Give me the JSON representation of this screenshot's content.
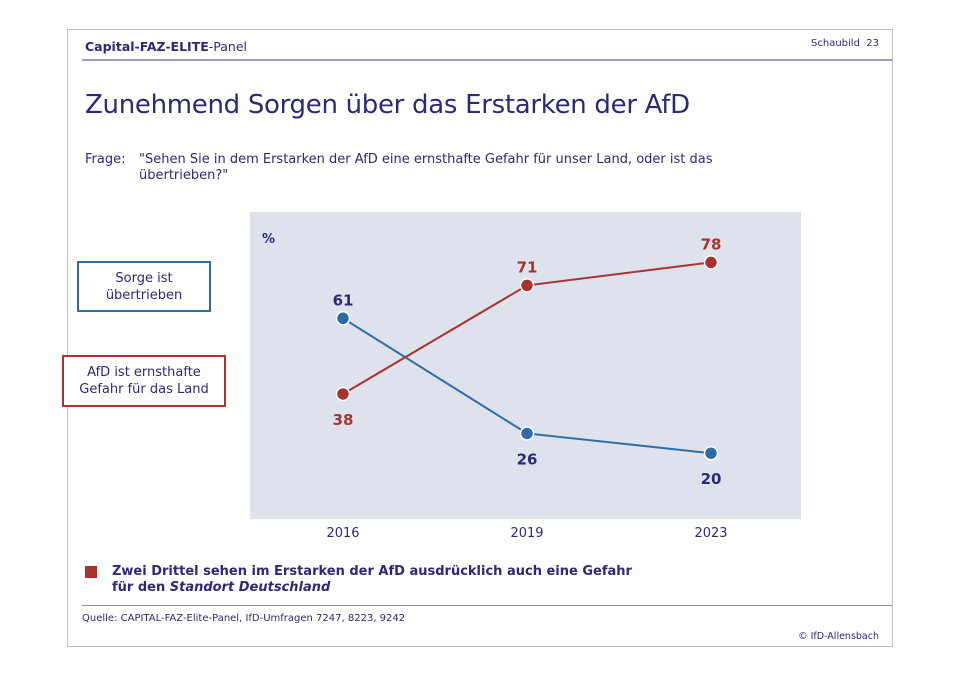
{
  "header": {
    "panel_name_bold": "Capital-FAZ-ELITE",
    "panel_name_rest": "-Panel",
    "schaubild": "Schaubild  23"
  },
  "title": "Zunehmend Sorgen über das Erstarken der AfD",
  "question": {
    "label": "Frage:",
    "line1": "\"Sehen Sie in dem Erstarken der AfD eine ernsthafte Gefahr für unser Land, oder ist das",
    "line2": "übertrieben?\""
  },
  "legend": {
    "blue_line1": "Sorge ist",
    "blue_line2": "übertrieben",
    "red_line1": "AfD ist ernsthafte",
    "red_line2": "Gefahr für das Land"
  },
  "takeaway": {
    "line1": "Zwei Drittel sehen im Erstarken der AfD ausdrücklich auch eine Gefahr",
    "line2_prefix": "für den ",
    "line2_italic": "Standort Deutschland"
  },
  "source": "Quelle: CAPITAL-FAZ-Elite-Panel, IfD-Umfragen 7247, 8223, 9242",
  "copyright": "© IfD-Allensbach",
  "colors": {
    "panel_bg": "#dde2ec",
    "blue": "#2e6ca8",
    "red": "#a8332f",
    "navy_text": "#2b2a78"
  },
  "chart_data": {
    "type": "line",
    "title": "Zunehmend Sorgen über das Erstarken der AfD",
    "ylabel": "%",
    "xlabel": "",
    "x": [
      "2016",
      "2019",
      "2023"
    ],
    "ylim": [
      0,
      100
    ],
    "grid": false,
    "legend": "left",
    "series": [
      {
        "name": "Sorge ist übertrieben",
        "color": "#2e6ca8",
        "label_color": "#2b2a78",
        "values": [
          61,
          26,
          20
        ]
      },
      {
        "name": "AfD ist ernsthafte Gefahr für das Land",
        "color": "#a8332f",
        "label_color": "#a8332f",
        "values": [
          38,
          71,
          78
        ]
      }
    ]
  }
}
